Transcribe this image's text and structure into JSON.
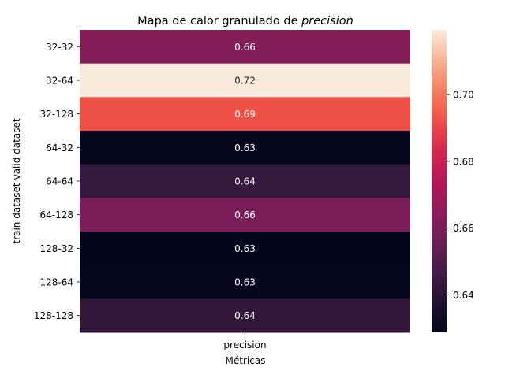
{
  "chart_data": {
    "type": "heatmap",
    "title_prefix": "Mapa de calor granulado de ",
    "title_italic": "precision",
    "xlabel": "Métricas",
    "ylabel": "train dataset-valid dataset",
    "columns": [
      "precision"
    ],
    "rows": [
      "32-32",
      "32-64",
      "32-128",
      "64-32",
      "64-64",
      "64-128",
      "128-32",
      "128-64",
      "128-128"
    ],
    "values": [
      0.6623,
      0.7193,
      0.6923,
      0.63,
      0.6427,
      0.6598,
      0.6288,
      0.6297,
      0.642
    ],
    "labels": [
      "0.66",
      "0.72",
      "0.69",
      "0.63",
      "0.64",
      "0.66",
      "0.63",
      "0.63",
      "0.64"
    ],
    "colorbar": {
      "range": [
        0.6288,
        0.7193
      ],
      "ticks": [
        0.64,
        0.66,
        0.68,
        0.7
      ],
      "tick_labels": [
        "0.64",
        "0.66",
        "0.68",
        "0.70"
      ]
    },
    "colormap": "rocket"
  }
}
